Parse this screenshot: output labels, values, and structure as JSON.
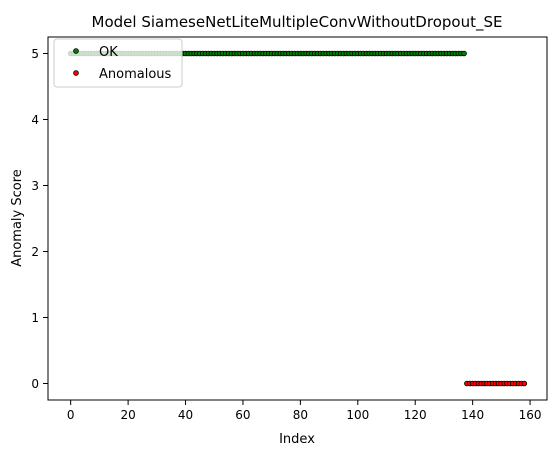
{
  "chart_data": {
    "type": "scatter",
    "title": "Model SiameseNetLiteMultipleConvWithoutDropout_SE",
    "xlabel": "Index",
    "ylabel": "Anomaly Score",
    "xlim": [
      -7.9,
      165.9
    ],
    "ylim": [
      -0.25,
      5.25
    ],
    "xticks": [
      0,
      20,
      40,
      60,
      80,
      100,
      120,
      140,
      160
    ],
    "yticks": [
      0,
      1,
      2,
      3,
      4,
      5
    ],
    "grid": false,
    "legend_placement": "upper-left",
    "series": [
      {
        "name": "OK",
        "color": "#008000",
        "edgecolor": "#000000",
        "x_start": 0,
        "x_end": 137,
        "y": 5
      },
      {
        "name": "Anomalous",
        "color": "#ff0000",
        "edgecolor": "#000000",
        "x_start": 138,
        "x_end": 158,
        "y": 0
      }
    ]
  }
}
